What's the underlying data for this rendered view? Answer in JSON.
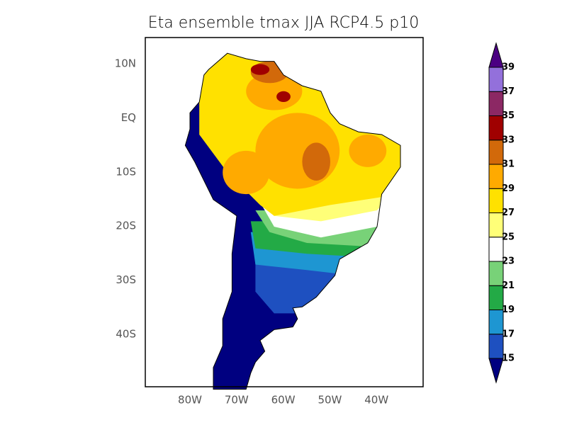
{
  "title": "Eta ensemble tmax JJA RCP4.5 p10",
  "map": {
    "lat_labels": [
      "10N",
      "EQ",
      "10S",
      "20S",
      "30S",
      "40S"
    ],
    "lon_labels": [
      "80W",
      "70W",
      "60W",
      "50W",
      "40W"
    ]
  },
  "colorbar": {
    "levels": [
      15,
      17,
      19,
      21,
      23,
      25,
      27,
      29,
      31,
      33,
      35,
      37,
      39
    ],
    "colors": [
      "#000080",
      "#1e50c0",
      "#1e96d2",
      "#23aa46",
      "#78d278",
      "#ffffff",
      "#ffff78",
      "#ffe100",
      "#ffaa00",
      "#d2690a",
      "#a00000",
      "#8c2864",
      "#9370db",
      "#4b0082"
    ]
  }
}
